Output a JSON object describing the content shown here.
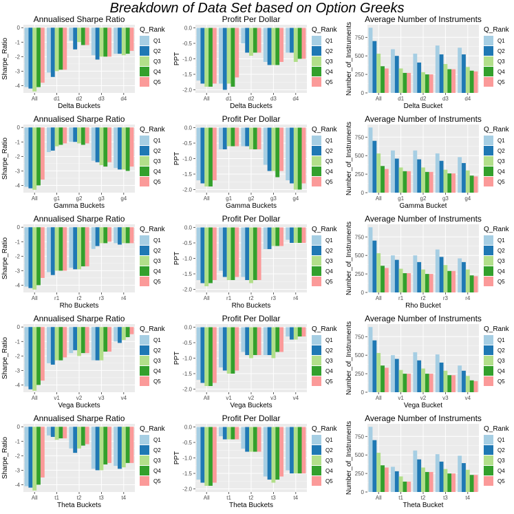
{
  "figure": {
    "title": "Breakdown of Data Set based on Option Greeks"
  },
  "legend": {
    "title": "Q_Rank",
    "labels": [
      "Q1",
      "Q2",
      "Q3",
      "Q4",
      "Q5"
    ]
  },
  "colors": {
    "Q1": "#a6cee3",
    "Q2": "#1f78b4",
    "Q3": "#b2df8a",
    "Q4": "#33a02c",
    "Q5": "#fb9a99",
    "panel_bg": "#ebebeb",
    "grid": "#ffffff",
    "axis_text": "#4d4d4d"
  },
  "chart_data": [
    {
      "type": "bar",
      "title": "Annualised Sharpe Ratio",
      "xlabel": "Delta  Buckets",
      "ylabel": "Sharpe_Ratio",
      "ylim": [
        -4.5,
        0.2
      ],
      "yticks": [
        0,
        -1,
        -2,
        -3,
        -4
      ],
      "categories": [
        "All",
        "d1",
        "d2",
        "d3",
        "d4"
      ],
      "grid": true,
      "legend": "right",
      "series": [
        {
          "name": "Q1",
          "values": [
            -4.1,
            -3.1,
            -0.9,
            -1.9,
            -1.8
          ]
        },
        {
          "name": "Q2",
          "values": [
            -4.2,
            -3.4,
            -1.5,
            -2.2,
            -1.8
          ]
        },
        {
          "name": "Q3",
          "values": [
            -4.4,
            -3.0,
            -1.0,
            -2.0,
            -1.9
          ]
        },
        {
          "name": "Q4",
          "values": [
            -4.1,
            -2.9,
            -1.2,
            -2.0,
            -1.8
          ]
        },
        {
          "name": "Q5",
          "values": [
            -3.8,
            -2.9,
            -1.2,
            -2.0,
            -1.6
          ]
        }
      ]
    },
    {
      "type": "bar",
      "title": "Profit Per Dollar",
      "xlabel": "Delta  Buckets",
      "ylabel": "PPT",
      "ylim": [
        -2.1,
        0.1
      ],
      "yticks": [
        0,
        -0.5,
        -1.0,
        -1.5,
        -2.0
      ],
      "categories": [
        "All",
        "d1",
        "d2",
        "d3",
        "d4"
      ],
      "grid": true,
      "legend": "right",
      "series": [
        {
          "name": "Q1",
          "values": [
            -1.7,
            -1.8,
            -0.5,
            -1.1,
            -0.8
          ]
        },
        {
          "name": "Q2",
          "values": [
            -1.8,
            -2.0,
            -0.8,
            -1.2,
            -0.8
          ]
        },
        {
          "name": "Q3",
          "values": [
            -1.9,
            -1.8,
            -0.9,
            -1.2,
            -1.1
          ]
        },
        {
          "name": "Q4",
          "values": [
            -1.9,
            -1.9,
            -0.8,
            -1.2,
            -1.0
          ]
        },
        {
          "name": "Q5",
          "values": [
            -1.8,
            -1.6,
            -0.8,
            -1.1,
            -1.0
          ]
        }
      ]
    },
    {
      "type": "bar",
      "title": "Average Number of Instruments",
      "xlabel": "Delta  Bucket",
      "ylabel": "Number_of_Instruments",
      "ylim": [
        0,
        920
      ],
      "yticks": [
        0,
        250,
        500,
        750
      ],
      "categories": [
        "All",
        "d1",
        "d2",
        "d3",
        "d4"
      ],
      "grid": true,
      "legend": "right",
      "series": [
        {
          "name": "Q1",
          "values": [
            880,
            590,
            530,
            640,
            610
          ]
        },
        {
          "name": "Q2",
          "values": [
            700,
            500,
            410,
            520,
            520
          ]
        },
        {
          "name": "Q3",
          "values": [
            530,
            330,
            280,
            390,
            350
          ]
        },
        {
          "name": "Q4",
          "values": [
            360,
            270,
            250,
            320,
            300
          ]
        },
        {
          "name": "Q5",
          "values": [
            330,
            270,
            250,
            320,
            290
          ]
        }
      ]
    },
    {
      "type": "bar",
      "title": "Annualised Sharpe Ratio",
      "xlabel": "Gamma  Buckets",
      "ylabel": "Sharpe_Ratio",
      "ylim": [
        -4.5,
        0.2
      ],
      "yticks": [
        0,
        -1,
        -2,
        -3,
        -4
      ],
      "categories": [
        "All",
        "g1",
        "g2",
        "g3",
        "g4"
      ],
      "grid": true,
      "legend": "right",
      "series": [
        {
          "name": "Q1",
          "values": [
            -4.1,
            -1.7,
            -1.0,
            -2.3,
            -2.8
          ]
        },
        {
          "name": "Q2",
          "values": [
            -4.2,
            -1.6,
            -1.0,
            -2.4,
            -2.9
          ]
        },
        {
          "name": "Q3",
          "values": [
            -4.3,
            -1.3,
            -1.1,
            -2.6,
            -2.9
          ]
        },
        {
          "name": "Q4",
          "values": [
            -4.0,
            -1.2,
            -1.2,
            -2.7,
            -3.0
          ]
        },
        {
          "name": "Q5",
          "values": [
            -3.6,
            -1.1,
            -1.1,
            -2.4,
            -2.7
          ]
        }
      ]
    },
    {
      "type": "bar",
      "title": "Profit Per Dollar",
      "xlabel": "Gamma  Buckets",
      "ylabel": "PPT",
      "ylim": [
        -2.1,
        0.1
      ],
      "yticks": [
        0,
        -0.5,
        -1.0,
        -1.5,
        -2.0
      ],
      "categories": [
        "All",
        "g1",
        "g2",
        "g3",
        "g4"
      ],
      "grid": true,
      "legend": "right",
      "series": [
        {
          "name": "Q1",
          "values": [
            -1.7,
            -0.7,
            -0.6,
            -1.2,
            -1.7
          ]
        },
        {
          "name": "Q2",
          "values": [
            -1.8,
            -0.7,
            -0.6,
            -1.4,
            -1.8
          ]
        },
        {
          "name": "Q3",
          "values": [
            -1.9,
            -0.6,
            -0.7,
            -1.4,
            -2.0
          ]
        },
        {
          "name": "Q4",
          "values": [
            -1.9,
            -0.6,
            -0.7,
            -1.6,
            -2.0
          ]
        },
        {
          "name": "Q5",
          "values": [
            -1.7,
            -0.6,
            -0.7,
            -1.4,
            -1.8
          ]
        }
      ]
    },
    {
      "type": "bar",
      "title": "Average Number of Instruments",
      "xlabel": "Gamma  Bucket",
      "ylabel": "Number_of_Instruments",
      "ylim": [
        0,
        920
      ],
      "yticks": [
        0,
        250,
        500,
        750
      ],
      "categories": [
        "All",
        "g1",
        "g2",
        "g3",
        "g4"
      ],
      "grid": true,
      "legend": "right",
      "series": [
        {
          "name": "Q1",
          "values": [
            880,
            570,
            570,
            530,
            480
          ]
        },
        {
          "name": "Q2",
          "values": [
            700,
            460,
            450,
            430,
            400
          ]
        },
        {
          "name": "Q3",
          "values": [
            530,
            340,
            340,
            310,
            300
          ]
        },
        {
          "name": "Q4",
          "values": [
            360,
            290,
            280,
            260,
            230
          ]
        },
        {
          "name": "Q5",
          "values": [
            320,
            290,
            280,
            260,
            220
          ]
        }
      ]
    },
    {
      "type": "bar",
      "title": "Annualised Sharpe Ratio",
      "xlabel": "Rho  Buckets",
      "ylabel": "Sharpe_Ratio",
      "ylim": [
        -4.5,
        0.2
      ],
      "yticks": [
        0,
        -1,
        -2,
        -3,
        -4
      ],
      "categories": [
        "All",
        "r1",
        "r2",
        "r3",
        "r4"
      ],
      "grid": true,
      "legend": "right",
      "series": [
        {
          "name": "Q1",
          "values": [
            -4.1,
            -3.1,
            -2.8,
            -1.5,
            -1.1
          ]
        },
        {
          "name": "Q2",
          "values": [
            -4.2,
            -3.3,
            -2.9,
            -1.3,
            -1.2
          ]
        },
        {
          "name": "Q3",
          "values": [
            -4.3,
            -3.0,
            -2.9,
            -1.1,
            -1.1
          ]
        },
        {
          "name": "Q4",
          "values": [
            -4.0,
            -3.0,
            -2.7,
            -1.1,
            -1.1
          ]
        },
        {
          "name": "Q5",
          "values": [
            -3.5,
            -3.0,
            -2.7,
            -1.0,
            -1.1
          ]
        }
      ]
    },
    {
      "type": "bar",
      "title": "Profit Per Dollar",
      "xlabel": "Rho  Buckets",
      "ylabel": "PPT",
      "ylim": [
        -2.1,
        0.1
      ],
      "yticks": [
        0,
        -0.5,
        -1.0,
        -1.5,
        -2.0
      ],
      "categories": [
        "All",
        "r1",
        "r2",
        "r3",
        "r4"
      ],
      "grid": true,
      "legend": "right",
      "series": [
        {
          "name": "Q1",
          "values": [
            -1.7,
            -1.4,
            -1.6,
            -0.7,
            -0.4
          ]
        },
        {
          "name": "Q2",
          "values": [
            -1.8,
            -1.6,
            -1.7,
            -0.7,
            -0.5
          ]
        },
        {
          "name": "Q3",
          "values": [
            -1.9,
            -1.7,
            -1.8,
            -0.6,
            -0.5
          ]
        },
        {
          "name": "Q4",
          "values": [
            -1.8,
            -1.7,
            -1.7,
            -0.6,
            -0.5
          ]
        },
        {
          "name": "Q5",
          "values": [
            -1.7,
            -1.6,
            -1.7,
            -0.6,
            -0.5
          ]
        }
      ]
    },
    {
      "type": "bar",
      "title": "Average Number of Instruments",
      "xlabel": "Rho  Bucket",
      "ylabel": "Number_of_Instruments",
      "ylim": [
        0,
        920
      ],
      "yticks": [
        0,
        250,
        500,
        750
      ],
      "categories": [
        "All",
        "r1",
        "r2",
        "r3",
        "r4"
      ],
      "grid": true,
      "legend": "right",
      "series": [
        {
          "name": "Q1",
          "values": [
            880,
            500,
            500,
            580,
            460
          ]
        },
        {
          "name": "Q2",
          "values": [
            700,
            440,
            410,
            480,
            410
          ]
        },
        {
          "name": "Q3",
          "values": [
            530,
            320,
            310,
            370,
            310
          ]
        },
        {
          "name": "Q4",
          "values": [
            360,
            260,
            250,
            290,
            230
          ]
        },
        {
          "name": "Q5",
          "values": [
            330,
            260,
            250,
            290,
            220
          ]
        }
      ]
    },
    {
      "type": "bar",
      "title": "Annualised Sharpe Ratio",
      "xlabel": "Vega  Buckets",
      "ylabel": "Sharpe_Ratio",
      "ylim": [
        -4.5,
        0.2
      ],
      "yticks": [
        0,
        -1,
        -2,
        -3,
        -4
      ],
      "categories": [
        "All",
        "v1",
        "v2",
        "v3",
        "v4"
      ],
      "grid": true,
      "legend": "right",
      "series": [
        {
          "name": "Q1",
          "values": [
            -4.1,
            -2.5,
            -1.8,
            -2.3,
            -1.0
          ]
        },
        {
          "name": "Q2",
          "values": [
            -4.3,
            -2.6,
            -1.6,
            -2.3,
            -1.1
          ]
        },
        {
          "name": "Q3",
          "values": [
            -4.4,
            -2.3,
            -2.0,
            -2.3,
            -0.9
          ]
        },
        {
          "name": "Q4",
          "values": [
            -4.0,
            -2.3,
            -1.8,
            -1.7,
            -0.7
          ]
        },
        {
          "name": "Q5",
          "values": [
            -3.7,
            -2.1,
            -1.8,
            -1.7,
            -0.5
          ]
        }
      ]
    },
    {
      "type": "bar",
      "title": "Profit Per Dollar",
      "xlabel": "Vega  Buckets",
      "ylabel": "PPT",
      "ylim": [
        -2.1,
        0.1
      ],
      "yticks": [
        0,
        -0.5,
        -1.0,
        -1.5,
        -2.0
      ],
      "categories": [
        "All",
        "v1",
        "v2",
        "v3",
        "v4"
      ],
      "grid": true,
      "legend": "right",
      "series": [
        {
          "name": "Q1",
          "values": [
            -1.7,
            -1.3,
            -0.8,
            -0.9,
            -0.3
          ]
        },
        {
          "name": "Q2",
          "values": [
            -1.8,
            -1.4,
            -0.9,
            -0.9,
            -0.4
          ]
        },
        {
          "name": "Q3",
          "values": [
            -1.9,
            -1.5,
            -1.0,
            -1.0,
            -0.4
          ]
        },
        {
          "name": "Q4",
          "values": [
            -1.9,
            -1.5,
            -0.9,
            -0.8,
            -0.3
          ]
        },
        {
          "name": "Q5",
          "values": [
            -1.8,
            -1.4,
            -0.9,
            -0.8,
            -0.3
          ]
        }
      ]
    },
    {
      "type": "bar",
      "title": "Average Number of Instruments",
      "xlabel": "Vega  Bucket",
      "ylabel": "Number_of_Instruments",
      "ylim": [
        0,
        920
      ],
      "yticks": [
        0,
        250,
        500,
        750
      ],
      "categories": [
        "All",
        "v1",
        "v2",
        "v3",
        "v4"
      ],
      "grid": true,
      "legend": "right",
      "series": [
        {
          "name": "Q1",
          "values": [
            880,
            500,
            540,
            510,
            360
          ]
        },
        {
          "name": "Q2",
          "values": [
            700,
            450,
            430,
            400,
            290
          ]
        },
        {
          "name": "Q3",
          "values": [
            530,
            300,
            320,
            290,
            220
          ]
        },
        {
          "name": "Q4",
          "values": [
            360,
            250,
            250,
            230,
            160
          ]
        },
        {
          "name": "Q5",
          "values": [
            330,
            250,
            250,
            230,
            150
          ]
        }
      ]
    },
    {
      "type": "bar",
      "title": "Annualised Sharpe Ratio",
      "xlabel": "Theta  Buckets",
      "ylabel": "Sharpe_Ratio",
      "ylim": [
        -4.5,
        0.2
      ],
      "yticks": [
        0,
        -1,
        -2,
        -3,
        -4
      ],
      "categories": [
        "All",
        "t1",
        "t2",
        "t3",
        "t4"
      ],
      "grid": true,
      "legend": "right",
      "series": [
        {
          "name": "Q1",
          "values": [
            -4.1,
            -0.6,
            -1.5,
            -2.9,
            -2.7
          ]
        },
        {
          "name": "Q2",
          "values": [
            -4.2,
            -0.7,
            -1.8,
            -3.0,
            -2.9
          ]
        },
        {
          "name": "Q3",
          "values": [
            -4.4,
            -0.9,
            -1.5,
            -3.0,
            -2.8
          ]
        },
        {
          "name": "Q4",
          "values": [
            -4.0,
            -0.8,
            -1.3,
            -2.6,
            -2.5
          ]
        },
        {
          "name": "Q5",
          "values": [
            -3.5,
            -0.8,
            -1.2,
            -2.5,
            -2.5
          ]
        }
      ]
    },
    {
      "type": "bar",
      "title": "Profit Per Dollar",
      "xlabel": "Theta  Buckets",
      "ylabel": "PPT",
      "ylim": [
        -2.1,
        0.1
      ],
      "yticks": [
        0,
        -0.5,
        -1.0,
        -1.5,
        -2.0
      ],
      "categories": [
        "All",
        "t1",
        "t2",
        "t3",
        "t4"
      ],
      "grid": true,
      "legend": "right",
      "series": [
        {
          "name": "Q1",
          "values": [
            -1.7,
            -0.3,
            -0.7,
            -1.6,
            -1.4
          ]
        },
        {
          "name": "Q2",
          "values": [
            -1.8,
            -0.4,
            -0.8,
            -1.7,
            -1.5
          ]
        },
        {
          "name": "Q3",
          "values": [
            -1.9,
            -0.4,
            -0.8,
            -1.8,
            -1.5
          ]
        },
        {
          "name": "Q4",
          "values": [
            -1.9,
            -0.4,
            -0.8,
            -1.7,
            -1.5
          ]
        },
        {
          "name": "Q5",
          "values": [
            -1.8,
            -0.4,
            -0.8,
            -1.6,
            -1.5
          ]
        }
      ]
    },
    {
      "type": "bar",
      "title": "Average Number of Instruments",
      "xlabel": "Theta  Bucket",
      "ylabel": "Number_of_Instruments",
      "ylim": [
        0,
        920
      ],
      "yticks": [
        0,
        250,
        500,
        750
      ],
      "categories": [
        "All",
        "t1",
        "t2",
        "t3",
        "t4"
      ],
      "grid": true,
      "legend": "right",
      "series": [
        {
          "name": "Q1",
          "values": [
            880,
            340,
            560,
            510,
            490
          ]
        },
        {
          "name": "Q2",
          "values": [
            700,
            280,
            440,
            410,
            390
          ]
        },
        {
          "name": "Q3",
          "values": [
            530,
            210,
            330,
            310,
            300
          ]
        },
        {
          "name": "Q4",
          "values": [
            360,
            140,
            270,
            250,
            230
          ]
        },
        {
          "name": "Q5",
          "values": [
            330,
            140,
            270,
            250,
            230
          ]
        }
      ]
    }
  ]
}
